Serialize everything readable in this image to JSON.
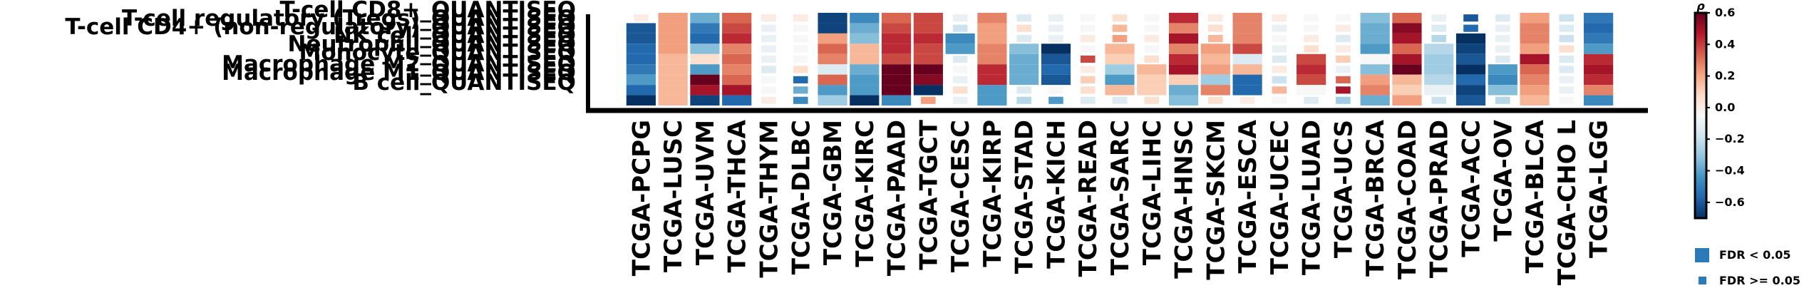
{
  "chart_data": {
    "type": "heatmap",
    "title": "",
    "xlabel": "",
    "ylabel": "",
    "rows": [
      "T-cell CD8+_QUANTISEQ",
      "T-cell regulatory (Tregs)_QUANTISEQ",
      "T-cell CD4+ (non-regulatory)_QUANTISEQ",
      "NK cell_QUANTISEQ",
      "Neutrophil_QUANTISEQ",
      "Monocyte_QUANTISEQ",
      "Macrophage M2_QUANTISEQ",
      "Macrophage M1_QUANTISEQ",
      "B cell_QUANTISEQ"
    ],
    "columns": [
      "TCGA-PCPG",
      "TCGA-LUSC",
      "TCGA-UVM",
      "TCGA-THCA",
      "TCGA-THYM",
      "TCGA-DLBC",
      "TCGA-GBM",
      "TCGA-KIRC",
      "TCGA-PAAD",
      "TCGA-TGCT",
      "TCGA-CESC",
      "TCGA-KIRP",
      "TCGA-STAD",
      "TCGA-KICH",
      "TCGA-READ",
      "TCGA-SARC",
      "TCGA-LIHC",
      "TCGA-HNSC",
      "TCGA-SKCM",
      "TCGA-ESCA",
      "TCGA-UCEC",
      "TCGA-LUAD",
      "TCGA-UCS",
      "TCGA-BRCA",
      "TCGA-COAD",
      "TCGA-PRAD",
      "TCGA-ACC",
      "TCGA-OV",
      "TCGA-BLCA",
      "TCGA-CHOL",
      "TCGA-LGG"
    ],
    "column_labels": [
      "TCGA-PCPG",
      "TCGA-LUSC",
      "TCGA-UVM",
      "TCGA-THCA",
      "TCGA-THYM",
      "TCGA-DLBC",
      "TCGA-GBM",
      "TCGA-KIRC",
      "TCGA-PAAD",
      "TCGA-TGCT",
      "TCGA-CESC",
      "TCGA-KIRP",
      "TCGA-STAD",
      "TCGA-KICH",
      "TCGA-READ",
      "TCGA-SARC",
      "TCGA-LIHC",
      "TCGA-HNSC",
      "TCGA-SKCM",
      "TCGA-ESCA",
      "TCGA-UCEC",
      "TCGA-LUAD",
      "TCGA-UCS",
      "TCGA-BRCA",
      "TCGA-COAD",
      "TCGA-PRAD",
      "TCGA-ACC",
      "TCGA-OV",
      "TCGA-BLCA",
      "TCGA-CHO L",
      "TCGA-LGG"
    ],
    "values": [
      [
        0.05,
        0.25,
        -0.35,
        0.35,
        0.05,
        0.05,
        -0.65,
        -0.45,
        0.35,
        0.4,
        -0.05,
        0.3,
        -0.1,
        -0.05,
        0.0,
        0.1,
        0.0,
        0.45,
        0.05,
        0.3,
        0.05,
        0.0,
        0.0,
        -0.3,
        0.35,
        -0.05,
        -0.6,
        -0.1,
        0.25,
        -0.15,
        -0.5
      ],
      [
        -0.6,
        0.25,
        -0.5,
        0.4,
        -0.05,
        0.0,
        -0.65,
        -0.35,
        0.4,
        0.4,
        -0.15,
        0.25,
        0.1,
        -0.05,
        0.0,
        0.2,
        0.0,
        0.3,
        0.1,
        0.3,
        -0.05,
        0.0,
        0.05,
        -0.35,
        0.55,
        -0.1,
        -0.55,
        -0.05,
        0.3,
        -0.1,
        -0.55
      ],
      [
        -0.6,
        0.25,
        -0.55,
        0.45,
        -0.05,
        0.0,
        0.25,
        -0.3,
        0.45,
        0.45,
        -0.45,
        0.25,
        -0.1,
        -0.05,
        0.05,
        0.25,
        0.05,
        0.5,
        0.2,
        0.3,
        0.0,
        0.05,
        -0.1,
        -0.35,
        0.5,
        -0.2,
        -0.7,
        -0.05,
        0.3,
        -0.15,
        -0.5
      ],
      [
        -0.55,
        0.25,
        -0.3,
        0.3,
        -0.05,
        0.0,
        0.35,
        0.2,
        0.45,
        0.4,
        -0.4,
        0.3,
        -0.3,
        -0.7,
        0.0,
        0.2,
        0.0,
        0.3,
        0.25,
        0.4,
        -0.05,
        0.1,
        0.05,
        -0.4,
        0.35,
        -0.2,
        -0.65,
        -0.05,
        0.25,
        0.1,
        -0.4
      ],
      [
        -0.55,
        0.2,
        0.1,
        0.35,
        -0.05,
        0.0,
        0.3,
        0.2,
        0.4,
        0.4,
        -0.1,
        0.3,
        -0.35,
        -0.6,
        0.4,
        0.15,
        0.1,
        0.45,
        0.2,
        -0.1,
        -0.1,
        0.4,
        0.15,
        0.0,
        0.5,
        -0.25,
        -0.6,
        -0.1,
        0.5,
        -0.1,
        0.45
      ],
      [
        -0.5,
        0.2,
        -0.4,
        0.3,
        -0.1,
        0.1,
        -0.1,
        -0.35,
        0.7,
        0.65,
        0.0,
        0.45,
        -0.35,
        -0.55,
        0.05,
        -0.25,
        0.2,
        0.5,
        0.25,
        0.2,
        0.05,
        0.45,
        -0.05,
        -0.3,
        0.6,
        -0.25,
        -0.7,
        -0.4,
        0.35,
        -0.1,
        0.5
      ],
      [
        -0.4,
        0.2,
        0.65,
        0.35,
        0.0,
        -0.55,
        0.35,
        -0.4,
        0.65,
        0.55,
        -0.05,
        0.45,
        -0.35,
        -0.6,
        0.15,
        -0.4,
        0.15,
        0.15,
        -0.25,
        -0.55,
        -0.15,
        0.4,
        0.35,
        0.25,
        0.2,
        -0.2,
        -0.55,
        -0.45,
        0.3,
        -0.05,
        0.45
      ],
      [
        -0.55,
        0.2,
        0.5,
        0.5,
        0.0,
        -0.35,
        -0.4,
        -0.4,
        0.6,
        -0.7,
        0.1,
        -0.4,
        -0.1,
        0.0,
        0.1,
        0.2,
        0.15,
        -0.35,
        0.3,
        -0.55,
        0.2,
        0.0,
        0.5,
        0.3,
        0.15,
        -0.05,
        -0.65,
        -0.3,
        0.25,
        -0.05,
        0.3
      ],
      [
        -0.7,
        0.2,
        -0.65,
        -0.55,
        0.05,
        -0.45,
        -0.25,
        -0.7,
        -0.45,
        0.25,
        -0.05,
        -0.4,
        -0.2,
        -0.4,
        -0.1,
        -0.1,
        0.1,
        -0.3,
        0.1,
        0.05,
        0.0,
        -0.1,
        -0.25,
        -0.35,
        0.25,
        -0.15,
        -0.6,
        -0.2,
        0.2,
        0.0,
        -0.45
      ]
    ],
    "significant": [
      [
        false,
        true,
        true,
        true,
        false,
        false,
        true,
        true,
        true,
        true,
        false,
        true,
        false,
        false,
        false,
        false,
        false,
        true,
        false,
        true,
        false,
        false,
        false,
        true,
        true,
        false,
        false,
        false,
        true,
        false,
        true
      ],
      [
        true,
        true,
        true,
        true,
        false,
        false,
        true,
        true,
        true,
        true,
        false,
        true,
        false,
        false,
        false,
        false,
        false,
        true,
        false,
        true,
        false,
        false,
        false,
        true,
        true,
        false,
        false,
        false,
        true,
        false,
        true
      ],
      [
        true,
        true,
        true,
        true,
        false,
        false,
        true,
        true,
        true,
        true,
        true,
        true,
        false,
        false,
        false,
        false,
        false,
        true,
        false,
        true,
        false,
        false,
        false,
        true,
        true,
        false,
        true,
        false,
        true,
        false,
        true
      ],
      [
        true,
        true,
        true,
        true,
        false,
        false,
        true,
        true,
        true,
        true,
        true,
        true,
        true,
        true,
        false,
        true,
        false,
        true,
        true,
        true,
        false,
        false,
        false,
        true,
        true,
        true,
        true,
        false,
        true,
        false,
        true
      ],
      [
        true,
        true,
        true,
        true,
        false,
        false,
        true,
        true,
        true,
        true,
        false,
        true,
        true,
        true,
        false,
        true,
        false,
        true,
        true,
        true,
        false,
        true,
        false,
        true,
        true,
        true,
        true,
        false,
        true,
        false,
        true
      ],
      [
        true,
        true,
        true,
        true,
        false,
        false,
        true,
        true,
        true,
        true,
        false,
        true,
        true,
        true,
        false,
        true,
        true,
        true,
        true,
        true,
        false,
        true,
        false,
        true,
        true,
        true,
        true,
        true,
        true,
        false,
        true
      ],
      [
        true,
        true,
        true,
        true,
        false,
        false,
        true,
        true,
        true,
        true,
        false,
        true,
        true,
        true,
        false,
        true,
        true,
        true,
        true,
        true,
        false,
        true,
        false,
        true,
        true,
        true,
        true,
        true,
        true,
        false,
        true
      ],
      [
        true,
        true,
        true,
        true,
        false,
        false,
        true,
        true,
        true,
        true,
        false,
        true,
        false,
        false,
        false,
        true,
        true,
        true,
        true,
        true,
        false,
        true,
        false,
        true,
        true,
        true,
        true,
        true,
        true,
        false,
        true
      ],
      [
        true,
        true,
        true,
        true,
        false,
        false,
        true,
        true,
        true,
        false,
        false,
        true,
        false,
        false,
        false,
        false,
        false,
        true,
        false,
        false,
        false,
        false,
        false,
        true,
        true,
        false,
        true,
        false,
        true,
        false,
        true
      ]
    ],
    "color_scale": {
      "label": "ρ",
      "vmin": -0.7,
      "vmax": 0.6,
      "ticks": [
        0.6,
        0.4,
        0.2,
        0.0,
        -0.2,
        -0.4,
        -0.6
      ],
      "tick_labels": [
        "0.6",
        "0.4",
        "0.2",
        "0.0",
        "−0.2",
        "−0.4",
        "−0.6"
      ],
      "colormap": "RdBu_r"
    },
    "legend": {
      "placement": "bottom-right",
      "entries": [
        {
          "label": "FDR < 0.05",
          "marker": "large-square",
          "color": "#2b7bba"
        },
        {
          "label": "FDR >= 0.05",
          "marker": "small-square",
          "color": "#2b7bba"
        }
      ]
    },
    "grid": false
  }
}
